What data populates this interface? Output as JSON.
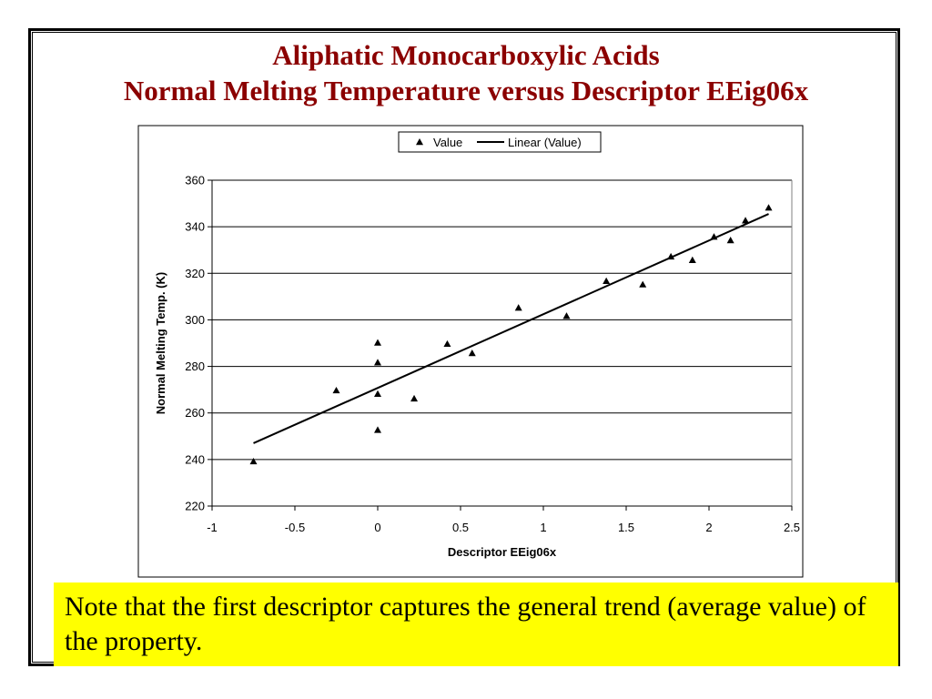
{
  "colors": {
    "title": "#8B0000",
    "note_background": "#FFFF00",
    "marker": "#000000",
    "gridline": "#000000"
  },
  "title": {
    "line1": "Aliphatic Monocarboxylic Acids",
    "line2": "Normal Melting Temperature versus Descriptor EEig06x"
  },
  "note": {
    "text": "Note that the first descriptor captures the general trend (average value) of the property."
  },
  "chart_data": {
    "type": "scatter",
    "xlabel": "Descriptor EEig06x",
    "ylabel": "Normal Melting Temp. (K)",
    "xlim": [
      -1,
      2.5
    ],
    "ylim": [
      220,
      360
    ],
    "x_ticks": [
      -1,
      -0.5,
      0,
      0.5,
      1,
      1.5,
      2,
      2.5
    ],
    "x_tick_labels": [
      "-1",
      "-0.5",
      "0",
      "0.5",
      "1",
      "1.5",
      "2",
      "2.5"
    ],
    "y_ticks": [
      220,
      240,
      260,
      280,
      300,
      320,
      340,
      360
    ],
    "y_tick_labels": [
      "220",
      "240",
      "260",
      "280",
      "300",
      "320",
      "340",
      "360"
    ],
    "grid": "horizontal",
    "legend_position": "top",
    "legend": [
      "Value",
      "Linear (Value)"
    ],
    "series": [
      {
        "name": "Value",
        "marker": "triangle",
        "points": [
          [
            -0.75,
            239
          ],
          [
            -0.25,
            269.5
          ],
          [
            0,
            290
          ],
          [
            0,
            281.5
          ],
          [
            0,
            268
          ],
          [
            0,
            252.5
          ],
          [
            0.22,
            266
          ],
          [
            0.42,
            289.5
          ],
          [
            0.57,
            285.5
          ],
          [
            0.85,
            305
          ],
          [
            1.14,
            301.5
          ],
          [
            1.38,
            316.5
          ],
          [
            1.6,
            315
          ],
          [
            1.77,
            327
          ],
          [
            1.9,
            325.5
          ],
          [
            2.03,
            335.5
          ],
          [
            2.13,
            334
          ],
          [
            2.22,
            342.5
          ],
          [
            2.36,
            348
          ]
        ]
      },
      {
        "name": "Linear (Value)",
        "type": "line",
        "points": [
          [
            -0.75,
            247
          ],
          [
            2.36,
            345.5
          ]
        ]
      }
    ]
  }
}
